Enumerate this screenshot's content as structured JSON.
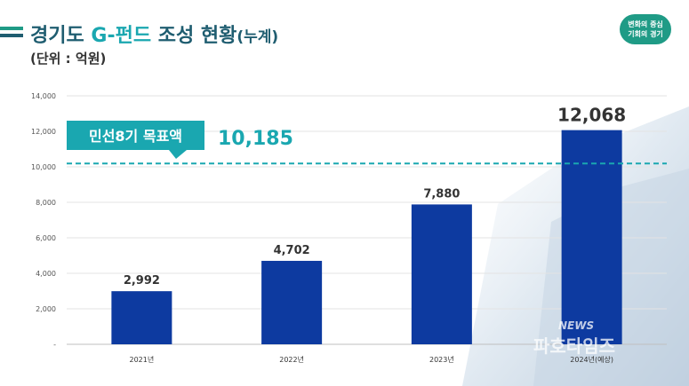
{
  "header": {
    "title_part1": "경기도 ",
    "title_accent": "G-펀드",
    "title_part2": " 조성 현황",
    "title_suffix": "(누계)",
    "unit": "(단위 : 억원)",
    "logo_line1": "변화의 중심",
    "logo_line2": "기회의 경기"
  },
  "target_label": "민선8기 목표액",
  "target_value_label": "10,185",
  "watermark": {
    "en": "NEWS",
    "ko": "파호타임즈"
  },
  "colors": {
    "bar": "#0d3aa0",
    "target_line": "#1aa7b0",
    "target_badge": "#1aa7b0",
    "title": "#1f5d70"
  },
  "chart_data": {
    "type": "bar",
    "categories": [
      "2021년",
      "2022년",
      "2023년",
      "2024년(예상)"
    ],
    "values": [
      2992,
      4702,
      7880,
      12068
    ],
    "data_labels": [
      "2,992",
      "4,702",
      "7,880",
      "12,068"
    ],
    "ylim": [
      0,
      14000
    ],
    "yticks": [
      0,
      2000,
      4000,
      6000,
      8000,
      10000,
      12000,
      14000
    ],
    "ytick_labels": [
      "-",
      "2,000",
      "4,000",
      "6,000",
      "8,000",
      "10,000",
      "12,000",
      "14,000"
    ],
    "target": 10185,
    "grid": true,
    "xlabel": "",
    "ylabel": ""
  }
}
